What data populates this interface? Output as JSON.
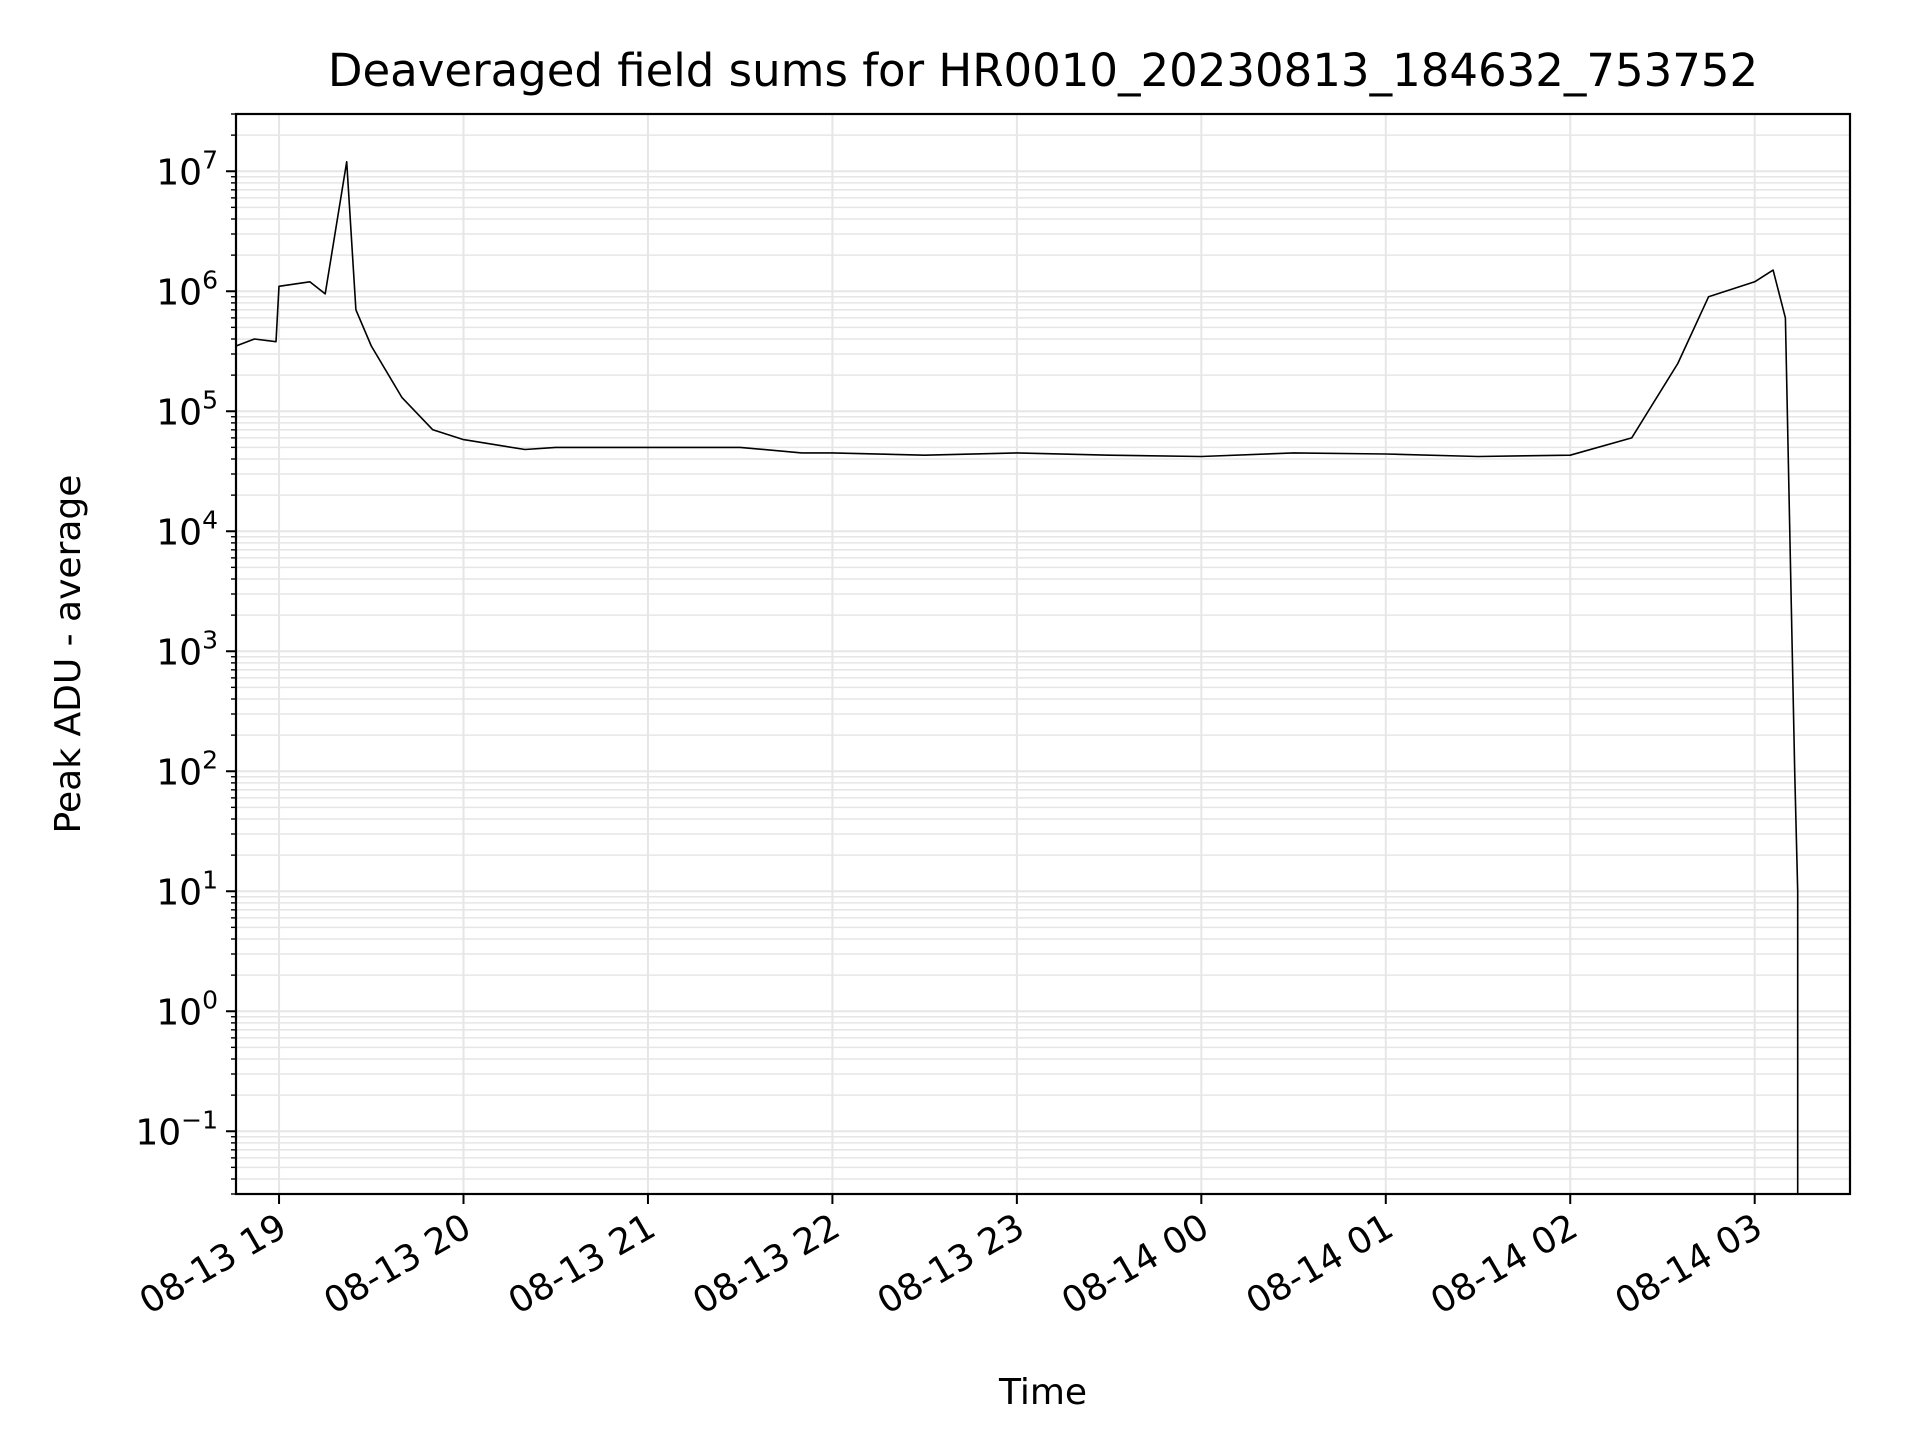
{
  "chart_data": {
    "type": "line",
    "title": "Deaveraged field sums for HR0010_20230813_184632_753752",
    "xlabel": "Time",
    "ylabel": "Peak ADU - average",
    "yscale": "log",
    "ylim": [
      0.03,
      30000000
    ],
    "xlim": [
      "2023-08-13 18:46",
      "2023-08-14 03:31"
    ],
    "grid": true,
    "line_color": "#000000",
    "grid_color": "#e6e6e6",
    "x_ticks": [
      "08-13 19",
      "08-13 20",
      "08-13 21",
      "08-13 22",
      "08-13 23",
      "08-14 00",
      "08-14 01",
      "08-14 02",
      "08-14 03"
    ],
    "y_ticks": [
      {
        "base": "10",
        "exp": "7"
      },
      {
        "base": "10",
        "exp": "6"
      },
      {
        "base": "10",
        "exp": "5"
      },
      {
        "base": "10",
        "exp": "4"
      },
      {
        "base": "10",
        "exp": "3"
      },
      {
        "base": "10",
        "exp": "2"
      },
      {
        "base": "10",
        "exp": "1"
      },
      {
        "base": "10",
        "exp": "0"
      },
      {
        "base": "10",
        "exp": "−1"
      }
    ],
    "series": [
      {
        "values": [
          {
            "x": "2023-08-13 18:46",
            "y": 350000
          },
          {
            "x": "2023-08-13 18:52",
            "y": 400000
          },
          {
            "x": "2023-08-13 18:59",
            "y": 380000
          },
          {
            "x": "2023-08-13 19:00",
            "y": 1100000
          },
          {
            "x": "2023-08-13 19:10",
            "y": 1200000
          },
          {
            "x": "2023-08-13 19:15",
            "y": 950000
          },
          {
            "x": "2023-08-13 19:22",
            "y": 12000000
          },
          {
            "x": "2023-08-13 19:25",
            "y": 700000
          },
          {
            "x": "2023-08-13 19:30",
            "y": 350000
          },
          {
            "x": "2023-08-13 19:40",
            "y": 130000
          },
          {
            "x": "2023-08-13 19:50",
            "y": 70000
          },
          {
            "x": "2023-08-13 20:00",
            "y": 58000
          },
          {
            "x": "2023-08-13 20:20",
            "y": 48000
          },
          {
            "x": "2023-08-13 20:30",
            "y": 50000
          },
          {
            "x": "2023-08-13 21:00",
            "y": 50000
          },
          {
            "x": "2023-08-13 21:30",
            "y": 50000
          },
          {
            "x": "2023-08-13 21:50",
            "y": 45000
          },
          {
            "x": "2023-08-13 22:00",
            "y": 45000
          },
          {
            "x": "2023-08-13 22:30",
            "y": 43000
          },
          {
            "x": "2023-08-13 23:00",
            "y": 45000
          },
          {
            "x": "2023-08-13 23:30",
            "y": 43000
          },
          {
            "x": "2023-08-14 00:00",
            "y": 42000
          },
          {
            "x": "2023-08-14 00:30",
            "y": 45000
          },
          {
            "x": "2023-08-14 01:00",
            "y": 44000
          },
          {
            "x": "2023-08-14 01:30",
            "y": 42000
          },
          {
            "x": "2023-08-14 02:00",
            "y": 43000
          },
          {
            "x": "2023-08-14 02:20",
            "y": 60000
          },
          {
            "x": "2023-08-14 02:35",
            "y": 250000
          },
          {
            "x": "2023-08-14 02:45",
            "y": 900000
          },
          {
            "x": "2023-08-14 03:00",
            "y": 1200000
          },
          {
            "x": "2023-08-14 03:06",
            "y": 1500000
          },
          {
            "x": "2023-08-14 03:10",
            "y": 600000
          },
          {
            "x": "2023-08-14 03:13",
            "y": 100
          },
          {
            "x": "2023-08-14 03:14",
            "y": 10
          },
          {
            "x": "2023-08-14 03:14",
            "y": 0.03
          }
        ]
      }
    ]
  }
}
